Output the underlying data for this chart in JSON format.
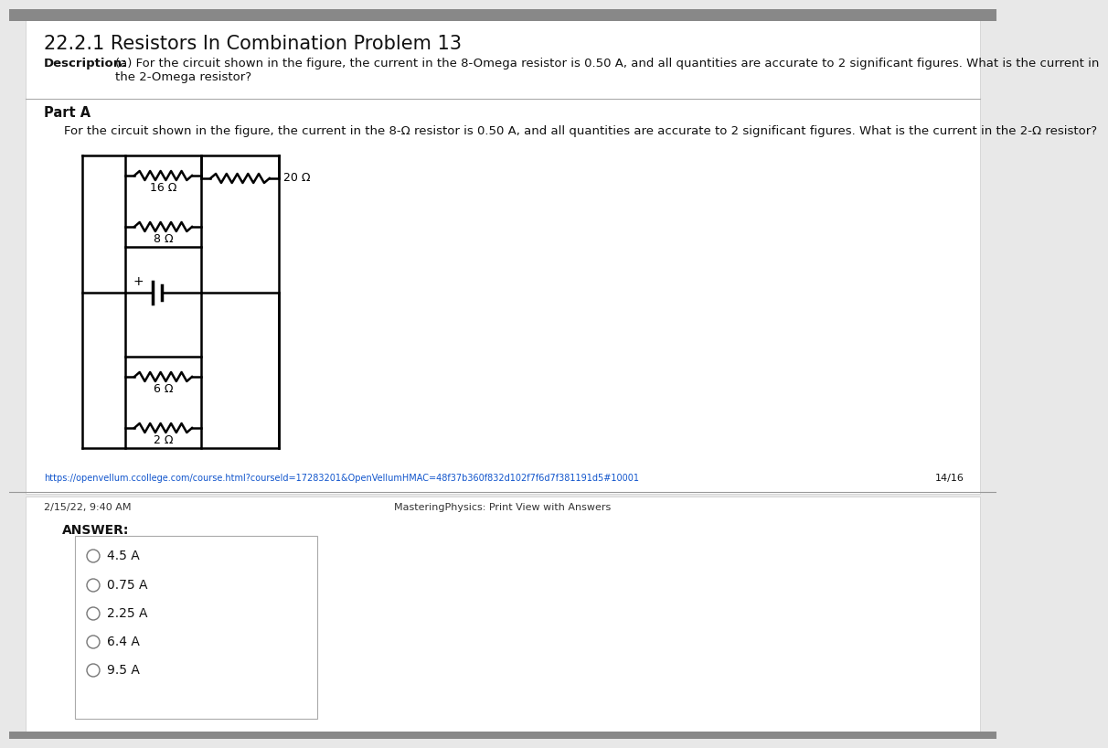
{
  "title": "22.2.1 Resistors In Combination Problem 13",
  "description_bold": "Description:",
  "description_text": "(a) For the circuit shown in the figure, the current in the 8-Omega resistor is 0.50 A, and all quantities are accurate to 2 significant figures. What is the current in\nthe 2-Omega resistor?",
  "part_a_label": "Part A",
  "part_a_text": "For the circuit shown in the figure, the current in the 8-Ω resistor is 0.50 A, and all quantities are accurate to 2 significant figures. What is the current in the 2-Ω resistor?",
  "resistor_labels": [
    "16 Ω",
    "8 Ω",
    "20 Ω",
    "6 Ω",
    "2 Ω"
  ],
  "url_text": "https://openvellum.ccollege.com/course.html?courseId=17283201&OpenVellumHMAC=48f37b360f832d102f7f6d7f381191d5#10001",
  "page_num": "14/16",
  "footer_left": "2/15/22, 9:40 AM",
  "footer_center": "MasteringPhysics: Print View with Answers",
  "answer_label": "ANSWER:",
  "answer_choices": [
    "4.5 A",
    "0.75 A",
    "2.25 A",
    "6.4 A",
    "9.5 A"
  ],
  "bg_top": "#e8e8e8",
  "bg_bottom": "#f5f5f5",
  "page_bg": "#ffffff",
  "border_color": "#bbbbbb",
  "text_color": "#000000",
  "url_color": "#1155cc",
  "divider_color": "#aaaaaa",
  "circuit_lw": 1.8
}
